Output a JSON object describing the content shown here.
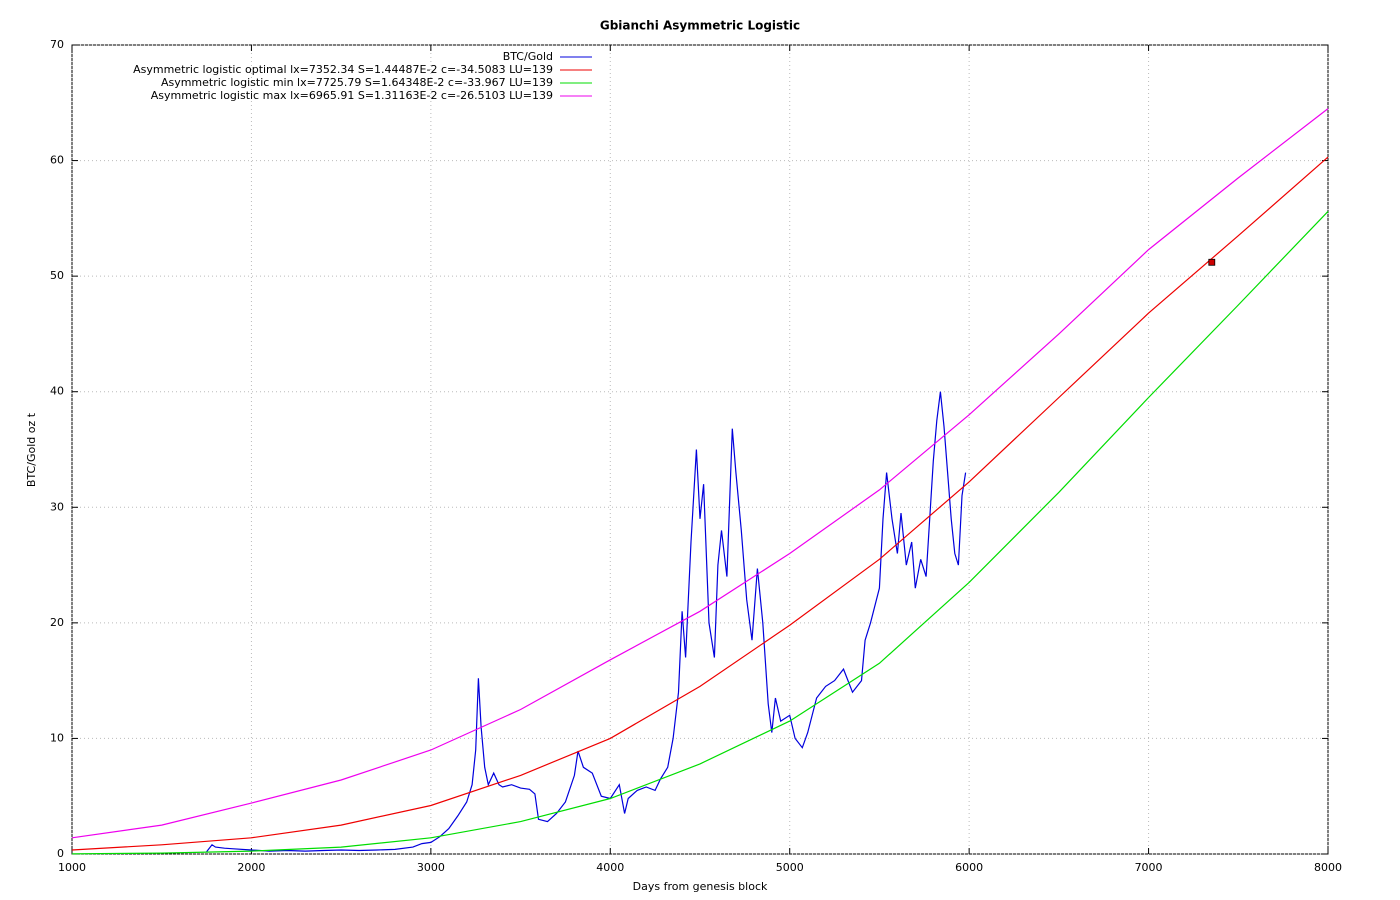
{
  "chart_data": {
    "type": "line",
    "title": "Gbianchi Asymmetric Logistic",
    "x_label": "Days from genesis block",
    "y_label": "BTC/Gold oz t",
    "xlim": [
      1000,
      8000
    ],
    "ylim": [
      0,
      70
    ],
    "xticks": [
      1000,
      2000,
      3000,
      4000,
      5000,
      6000,
      7000,
      8000
    ],
    "yticks": [
      0,
      10,
      20,
      30,
      40,
      50,
      60,
      70
    ],
    "grid": true,
    "legend": "top",
    "series": [
      {
        "name": "BTC/Gold",
        "color": "#0000dd",
        "x": [
          1750,
          1780,
          1800,
          1850,
          1900,
          2000,
          2100,
          2200,
          2300,
          2400,
          2500,
          2600,
          2700,
          2800,
          2900,
          2950,
          3000,
          3050,
          3100,
          3150,
          3200,
          3230,
          3250,
          3265,
          3280,
          3300,
          3320,
          3350,
          3380,
          3400,
          3450,
          3500,
          3550,
          3580,
          3600,
          3650,
          3700,
          3750,
          3800,
          3820,
          3850,
          3900,
          3950,
          4000,
          4050,
          4080,
          4100,
          4150,
          4200,
          4250,
          4280,
          4320,
          4350,
          4380,
          4400,
          4420,
          4450,
          4480,
          4500,
          4520,
          4550,
          4580,
          4600,
          4620,
          4650,
          4680,
          4700,
          4730,
          4760,
          4790,
          4820,
          4850,
          4880,
          4900,
          4920,
          4950,
          5000,
          5030,
          5070,
          5100,
          5150,
          5200,
          5250,
          5300,
          5350,
          5400,
          5420,
          5450,
          5500,
          5520,
          5540,
          5570,
          5600,
          5620,
          5650,
          5680,
          5700,
          5730,
          5760,
          5800,
          5820,
          5840,
          5860,
          5880,
          5900,
          5920,
          5940,
          5960,
          5980
        ],
        "values": [
          0.2,
          0.8,
          0.6,
          0.5,
          0.45,
          0.35,
          0.25,
          0.3,
          0.25,
          0.3,
          0.35,
          0.3,
          0.35,
          0.4,
          0.6,
          0.9,
          1.0,
          1.5,
          2.2,
          3.3,
          4.5,
          6,
          9,
          15.2,
          11,
          7.5,
          6,
          7,
          6,
          5.8,
          6,
          5.7,
          5.6,
          5.2,
          3,
          2.8,
          3.5,
          4.5,
          6.8,
          8.9,
          7.5,
          7,
          5,
          4.8,
          6,
          3.5,
          4.8,
          5.5,
          5.8,
          5.5,
          6.5,
          7.5,
          10,
          14,
          21,
          17,
          27,
          35,
          29,
          32,
          20,
          17,
          25,
          28,
          24,
          36.8,
          33,
          28,
          22,
          18.5,
          24.7,
          20,
          13,
          10.5,
          13.5,
          11.5,
          12,
          10,
          9.2,
          10.5,
          13.5,
          14.5,
          15,
          16,
          14,
          15,
          18.5,
          20,
          23,
          29,
          33,
          29,
          26,
          29.5,
          25,
          27,
          23,
          25.5,
          24,
          34,
          37.5,
          40,
          37,
          33,
          29,
          26,
          25,
          31,
          33
        ]
      },
      {
        "name": "Asymmetric logistic optimal lx=7352.34 S=1.44487E-2 c=-34.5083 LU=139",
        "color": "#ee0000",
        "x": [
          1000,
          1500,
          2000,
          2500,
          3000,
          3500,
          4000,
          4500,
          5000,
          5500,
          6000,
          6500,
          7000,
          7500,
          8000
        ],
        "values": [
          0.35,
          0.8,
          1.4,
          2.5,
          4.2,
          6.8,
          10,
          14.5,
          19.8,
          25.5,
          32.2,
          39.5,
          46.8,
          53.5,
          60.3
        ]
      },
      {
        "name": "Asymmetric logistic min lx=7725.79 S=1.64348E-2 c=-33.967 LU=139",
        "color": "#00dd00",
        "x": [
          1000,
          1500,
          2000,
          2500,
          3000,
          3500,
          4000,
          4500,
          5000,
          5500,
          6000,
          6500,
          7000,
          7500,
          8000
        ],
        "values": [
          0.02,
          0.08,
          0.25,
          0.6,
          1.4,
          2.8,
          4.8,
          7.8,
          11.5,
          16.5,
          23.5,
          31.3,
          39.5,
          47.5,
          55.6
        ]
      },
      {
        "name": "Asymmetric logistic max lx=6965.91 S=1.31163E-2 c=-26.5103 LU=139",
        "color": "#ee00ee",
        "x": [
          1000,
          1500,
          2000,
          2500,
          3000,
          3500,
          4000,
          4500,
          5000,
          5500,
          6000,
          6500,
          7000,
          7500,
          8000
        ],
        "values": [
          1.4,
          2.5,
          4.4,
          6.4,
          9,
          12.5,
          16.8,
          21,
          26,
          31.5,
          38,
          45,
          52.3,
          58.5,
          64.5
        ]
      }
    ],
    "highlight_point": {
      "x": 7352.34,
      "y": 51.2,
      "color": "#cc0000"
    }
  }
}
